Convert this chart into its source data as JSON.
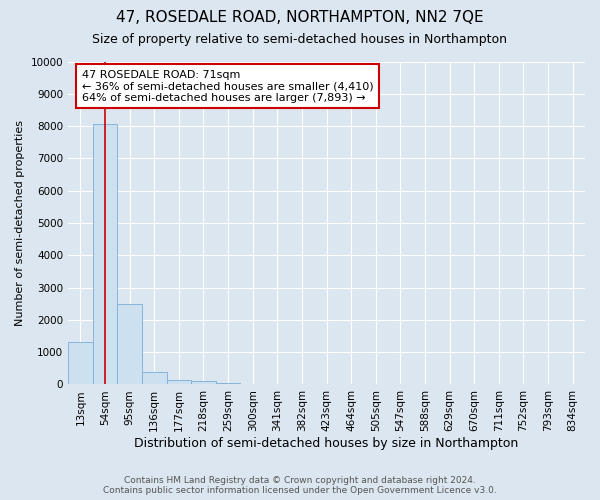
{
  "title": "47, ROSEDALE ROAD, NORTHAMPTON, NN2 7QE",
  "subtitle": "Size of property relative to semi-detached houses in Northampton",
  "xlabel": "Distribution of semi-detached houses by size in Northampton",
  "ylabel": "Number of semi-detached properties",
  "footer_line1": "Contains HM Land Registry data © Crown copyright and database right 2024.",
  "footer_line2": "Contains public sector information licensed under the Open Government Licence v3.0.",
  "categories": [
    "13sqm",
    "54sqm",
    "95sqm",
    "136sqm",
    "177sqm",
    "218sqm",
    "259sqm",
    "300sqm",
    "341sqm",
    "382sqm",
    "423sqm",
    "464sqm",
    "505sqm",
    "547sqm",
    "588sqm",
    "629sqm",
    "670sqm",
    "711sqm",
    "752sqm",
    "793sqm",
    "834sqm"
  ],
  "values": [
    1300,
    8050,
    2500,
    400,
    150,
    100,
    50,
    20,
    0,
    0,
    0,
    0,
    0,
    0,
    0,
    0,
    0,
    0,
    0,
    0,
    0
  ],
  "bar_color": "#cce0f0",
  "bar_edge_color": "#7aaed6",
  "property_line_x": 1,
  "property_label": "47 ROSEDALE ROAD: 71sqm",
  "annotation_smaller": "← 36% of semi-detached houses are smaller (4,410)",
  "annotation_larger": "64% of semi-detached houses are larger (7,893) →",
  "annotation_box_color": "#ffffff",
  "annotation_box_edge": "#cc0000",
  "property_line_color": "#cc0000",
  "ylim": [
    0,
    10000
  ],
  "yticks": [
    0,
    1000,
    2000,
    3000,
    4000,
    5000,
    6000,
    7000,
    8000,
    9000,
    10000
  ],
  "background_color": "#dce6f0",
  "grid_color": "#ffffff",
  "title_fontsize": 11,
  "subtitle_fontsize": 9,
  "ylabel_fontsize": 8,
  "xlabel_fontsize": 9,
  "tick_fontsize": 7.5,
  "footer_fontsize": 6.5
}
